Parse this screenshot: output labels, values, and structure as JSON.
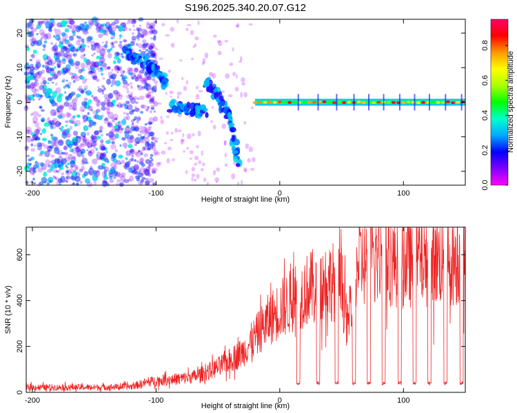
{
  "chart_data": [
    {
      "type": "heatmap",
      "title": "S196.2025.340.20.07.G12",
      "xlabel": "Height of straight line (km)",
      "ylabel": "Frequency (Hz)",
      "xlim": [
        -205,
        150
      ],
      "ylim": [
        -24,
        24
      ],
      "xticks": [
        -200,
        -100,
        0,
        100
      ],
      "yticks": [
        -20,
        -10,
        0,
        10,
        20
      ],
      "colorbar": {
        "label": "Normalized spectral amplitude",
        "range": [
          0,
          0.95
        ],
        "ticks": [
          0.0,
          0.2,
          0.4,
          0.6,
          0.8
        ],
        "colormap": [
          "#ff00ff",
          "#7f00ff",
          "#0000ff",
          "#00aaff",
          "#00ffcc",
          "#00ff00",
          "#aaff00",
          "#ffff00",
          "#ff9900",
          "#ff0000",
          "#ff0066"
        ]
      },
      "features": [
        {
          "name": "noise",
          "x_range": [
            -205,
            -100
          ],
          "freq_range": [
            -24,
            24
          ],
          "amplitude": 0.15
        },
        {
          "name": "upper-branch",
          "points": [
            [
              -125,
              14
            ],
            [
              -110,
              12
            ],
            [
              -100,
              9
            ],
            [
              -92,
              5
            ]
          ],
          "amplitude": 0.3
        },
        {
          "name": "lower-cluster",
          "points": [
            [
              -88,
              -1
            ],
            [
              -75,
              -2
            ],
            [
              -60,
              -3
            ]
          ],
          "amplitude": 0.3
        },
        {
          "name": "descending-branch",
          "points": [
            [
              -60,
              6
            ],
            [
              -50,
              2
            ],
            [
              -40,
              -5
            ],
            [
              -33,
              -18
            ]
          ],
          "amplitude": 0.3
        },
        {
          "name": "carrier-line",
          "x_range": [
            -20,
            150
          ],
          "freq": 0,
          "amplitude": 0.9
        }
      ]
    },
    {
      "type": "line",
      "xlabel": "Height of straight line (km)",
      "ylabel": "SNR (10 * v/v)",
      "xlim": [
        -205,
        150
      ],
      "ylim": [
        0,
        720
      ],
      "xticks": [
        -200,
        -100,
        0,
        100
      ],
      "yticks": [
        0,
        200,
        400,
        600
      ],
      "series": [
        {
          "name": "SNR",
          "color": "#ee2222",
          "x": [
            -205,
            -150,
            -120,
            -110,
            -100,
            -90,
            -80,
            -70,
            -60,
            -50,
            -40,
            -30,
            -20,
            -10,
            0,
            10,
            20,
            30,
            40,
            50,
            55,
            60,
            80,
            100,
            120,
            150
          ],
          "values": [
            22,
            22,
            25,
            40,
            50,
            55,
            60,
            68,
            85,
            110,
            140,
            175,
            240,
            310,
            360,
            400,
            440,
            470,
            490,
            470,
            280,
            560,
            580,
            570,
            580,
            580
          ],
          "dropouts_x": [
            15,
            31,
            46,
            60,
            72,
            84,
            97,
            109,
            121,
            134,
            147
          ],
          "dropout_value": 40
        }
      ]
    }
  ]
}
